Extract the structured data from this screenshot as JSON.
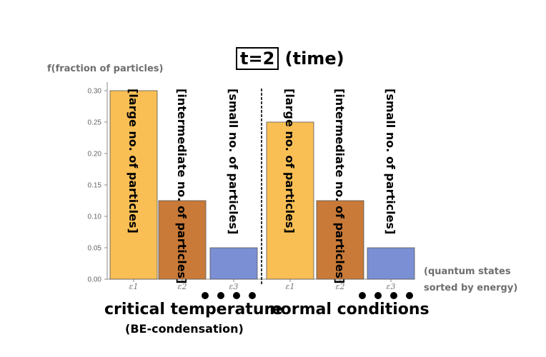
{
  "title_boxed": "t=2",
  "title_rest": "(time)",
  "ylabel": "f(fraction of particles)",
  "xlabel_line1": "(quantum states",
  "xlabel_line2": "sorted by energy)",
  "groups": [
    {
      "label": "critical temperature",
      "sublabel": "(BE-condensation)"
    },
    {
      "label": "normal conditions",
      "sublabel": ""
    }
  ],
  "chart_data": {
    "type": "bar",
    "ylim": [
      0,
      0.3
    ],
    "yticks": [
      "0.00",
      "0.05",
      "0.10",
      "0.15",
      "0.20",
      "0.25",
      "0.30"
    ],
    "categories": [
      "ε1",
      "ε2",
      "ε3",
      "ε1",
      "ε2",
      "ε3"
    ],
    "values": [
      0.3,
      0.125,
      0.05,
      0.25,
      0.125,
      0.05
    ],
    "bar_labels": [
      "[large no. of particles]",
      "[intermediate no. of particles]",
      "[small no. of particles]",
      "[large no. of particles]",
      "[intermediate no. of particles]",
      "[small no. of particles]"
    ],
    "colors": [
      "#f9bf55",
      "#c97a38",
      "#7b8fd4",
      "#f9bf55",
      "#c97a38",
      "#7b8fd4"
    ]
  }
}
